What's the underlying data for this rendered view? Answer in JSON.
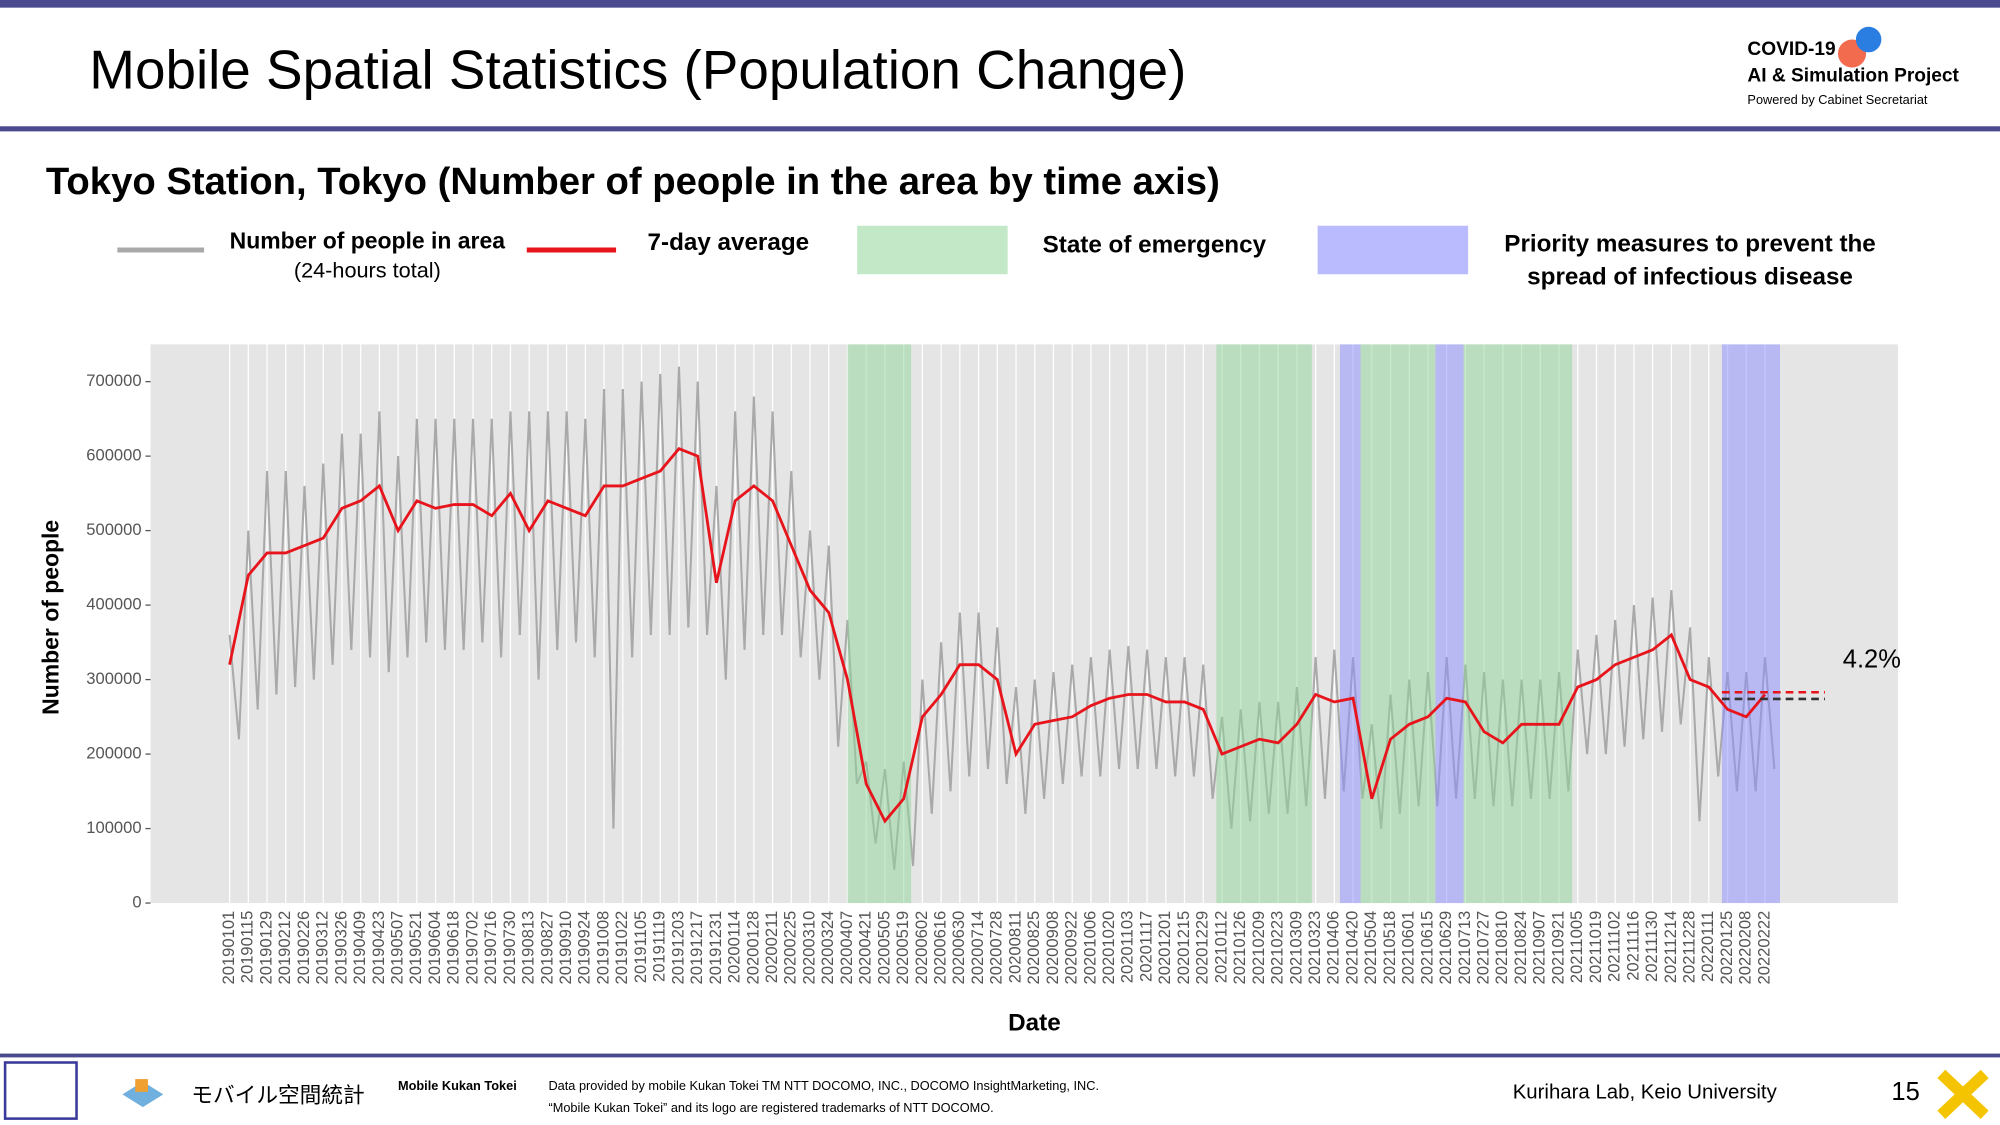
{
  "header": {
    "title": "Mobile Spatial Statistics (Population Change)",
    "logo": {
      "line1": "COVID-19",
      "line2": "AI & Simulation Project",
      "line3": "Powered by Cabinet Secretariat"
    }
  },
  "chart_data": {
    "type": "line",
    "title": "Tokyo Station, Tokyo (Number of people in the area by time axis)",
    "x_label": "Date",
    "y_label": "Number of people",
    "categories": [
      "20190101",
      "20190115",
      "20190129",
      "20190212",
      "20190226",
      "20190312",
      "20190326",
      "20190409",
      "20190423",
      "20190507",
      "20190521",
      "20190604",
      "20190618",
      "20190702",
      "20190716",
      "20190730",
      "20190813",
      "20190827",
      "20190910",
      "20190924",
      "20191008",
      "20191022",
      "20191105",
      "20191119",
      "20191203",
      "20191217",
      "20191231",
      "20200114",
      "20200128",
      "20200211",
      "20200225",
      "20200310",
      "20200324",
      "20200407",
      "20200421",
      "20200505",
      "20200519",
      "20200602",
      "20200616",
      "20200630",
      "20200714",
      "20200728",
      "20200811",
      "20200825",
      "20200908",
      "20200922",
      "20201006",
      "20201020",
      "20201103",
      "20201117",
      "20201201",
      "20201215",
      "20201229",
      "20210112",
      "20210126",
      "20210209",
      "20210223",
      "20210309",
      "20210323",
      "20210406",
      "20210420",
      "20210504",
      "20210518",
      "20210601",
      "20210615",
      "20210629",
      "20210713",
      "20210727",
      "20210810",
      "20210824",
      "20210907",
      "20210921",
      "20211005",
      "20211019",
      "20211102",
      "20211116",
      "20211130",
      "20211214",
      "20211228",
      "20220111",
      "20220125",
      "20220208",
      "20220222"
    ],
    "series": [
      {
        "name": "Number of people in area",
        "note": "(24-hours total)",
        "color": "#a9a9a9",
        "values": [
          360000,
          500000,
          580000,
          580000,
          560000,
          590000,
          630000,
          630000,
          660000,
          600000,
          650000,
          650000,
          650000,
          650000,
          650000,
          660000,
          660000,
          660000,
          660000,
          650000,
          690000,
          690000,
          700000,
          710000,
          720000,
          700000,
          560000,
          660000,
          680000,
          660000,
          580000,
          500000,
          480000,
          380000,
          190000,
          180000,
          190000,
          300000,
          350000,
          390000,
          390000,
          370000,
          290000,
          300000,
          310000,
          320000,
          330000,
          340000,
          345000,
          340000,
          330000,
          330000,
          320000,
          250000,
          260000,
          270000,
          270000,
          290000,
          330000,
          340000,
          330000,
          240000,
          280000,
          300000,
          310000,
          330000,
          320000,
          310000,
          300000,
          300000,
          300000,
          310000,
          340000,
          360000,
          380000,
          400000,
          410000,
          420000,
          370000,
          330000,
          310000,
          310000,
          330000
        ],
        "low_values": [
          220000,
          260000,
          280000,
          290000,
          300000,
          320000,
          340000,
          330000,
          310000,
          330000,
          350000,
          340000,
          340000,
          350000,
          330000,
          360000,
          300000,
          340000,
          350000,
          330000,
          100000,
          330000,
          360000,
          360000,
          370000,
          360000,
          300000,
          340000,
          360000,
          360000,
          330000,
          300000,
          210000,
          160000,
          80000,
          45000,
          50000,
          120000,
          150000,
          170000,
          180000,
          160000,
          120000,
          140000,
          160000,
          170000,
          170000,
          180000,
          180000,
          180000,
          170000,
          170000,
          140000,
          100000,
          110000,
          120000,
          120000,
          130000,
          140000,
          150000,
          140000,
          100000,
          120000,
          130000,
          130000,
          140000,
          140000,
          130000,
          130000,
          140000,
          140000,
          150000,
          200000,
          200000,
          210000,
          220000,
          230000,
          240000,
          110000,
          170000,
          150000,
          150000,
          180000
        ]
      },
      {
        "name": "7-day average",
        "color": "#e8141c",
        "values": [
          320000,
          440000,
          470000,
          470000,
          480000,
          490000,
          530000,
          540000,
          560000,
          500000,
          540000,
          530000,
          535000,
          535000,
          520000,
          550000,
          500000,
          540000,
          530000,
          520000,
          560000,
          560000,
          570000,
          580000,
          610000,
          600000,
          430000,
          540000,
          560000,
          540000,
          480000,
          420000,
          390000,
          300000,
          160000,
          110000,
          140000,
          250000,
          280000,
          320000,
          320000,
          300000,
          200000,
          240000,
          245000,
          250000,
          265000,
          275000,
          280000,
          280000,
          270000,
          270000,
          260000,
          200000,
          210000,
          220000,
          215000,
          240000,
          280000,
          270000,
          275000,
          140000,
          220000,
          240000,
          250000,
          275000,
          270000,
          230000,
          215000,
          240000,
          240000,
          240000,
          290000,
          300000,
          320000,
          330000,
          340000,
          360000,
          300000,
          290000,
          260000,
          250000,
          280000
        ]
      }
    ],
    "bands": [
      {
        "name": "State of emergency",
        "color": "#8fd69a",
        "periods": [
          [
            33.0,
            36.4
          ],
          [
            52.7,
            57.8
          ],
          [
            60.4,
            64.4
          ],
          [
            65.9,
            71.7
          ]
        ]
      },
      {
        "name": [
          "Priority measures to prevent the",
          "spread of infectious disease"
        ],
        "color": "#8c8cff",
        "periods": [
          [
            59.3,
            60.4
          ],
          [
            64.4,
            65.9
          ],
          [
            79.7,
            82.8
          ]
        ]
      }
    ],
    "reference_lines": [
      {
        "value": 274000,
        "color": "#333333"
      },
      {
        "value": 283000,
        "color": "#e8141c"
      }
    ],
    "annotation": "4.2%",
    "ylim": [
      0,
      750000
    ],
    "yticks": [
      0,
      100000,
      200000,
      300000,
      400000,
      500000,
      600000,
      700000
    ],
    "grid": "x"
  },
  "footer": {
    "brand": "モバイル空間統計",
    "name": "Mobile Kukan Tokei",
    "credit1": "Data provided by mobile Kukan Tokei TM NTT DOCOMO, INC., DOCOMO InsightMarketing, INC.",
    "credit2": "“Mobile Kukan Tokei” and its logo are registered trademarks of NTT DOCOMO.",
    "lab": "Kurihara Lab, Keio University",
    "page": "15"
  }
}
